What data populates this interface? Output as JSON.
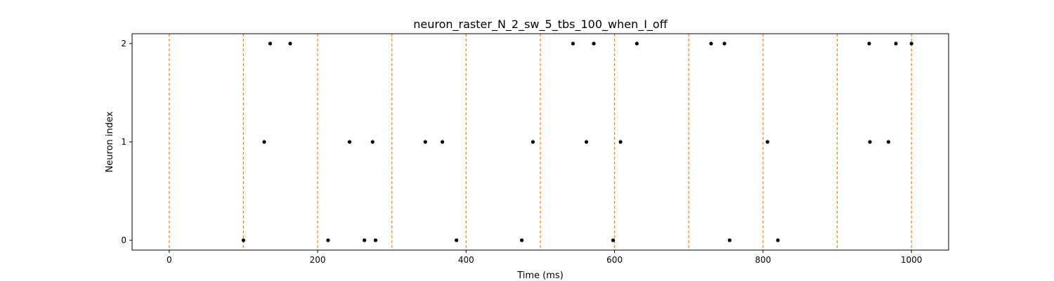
{
  "chart_data": {
    "type": "scatter",
    "title": "neuron_raster_N_2_sw_5_tbs_100_when_I_off",
    "xlabel": "Time (ms)",
    "ylabel": "Neuron index",
    "xlim": [
      -50,
      1050
    ],
    "ylim": [
      -0.1,
      2.1
    ],
    "xticks": [
      0,
      200,
      400,
      600,
      800,
      1000
    ],
    "xtick_labels": [
      "0",
      "200",
      "400",
      "600",
      "800",
      "1000"
    ],
    "yticks": [
      0,
      1,
      2
    ],
    "ytick_labels": [
      "0",
      "1",
      "2"
    ],
    "grid": false,
    "legend": "none",
    "marker_color": "#000000",
    "vline_color": "#ff7f0e",
    "vline_style": "dashed",
    "vlines_x": [
      0,
      100,
      200,
      300,
      400,
      500,
      600,
      700,
      800,
      900,
      1000
    ],
    "series": [
      {
        "neuron": 0,
        "x": [
          100,
          214,
          263,
          278,
          387,
          475,
          598,
          755,
          820
        ]
      },
      {
        "neuron": 1,
        "x": [
          128,
          243,
          274,
          345,
          368,
          490,
          562,
          608,
          806,
          944,
          969
        ]
      },
      {
        "neuron": 2,
        "x": [
          136,
          163,
          544,
          572,
          630,
          730,
          748,
          943,
          979,
          1000
        ]
      }
    ]
  }
}
